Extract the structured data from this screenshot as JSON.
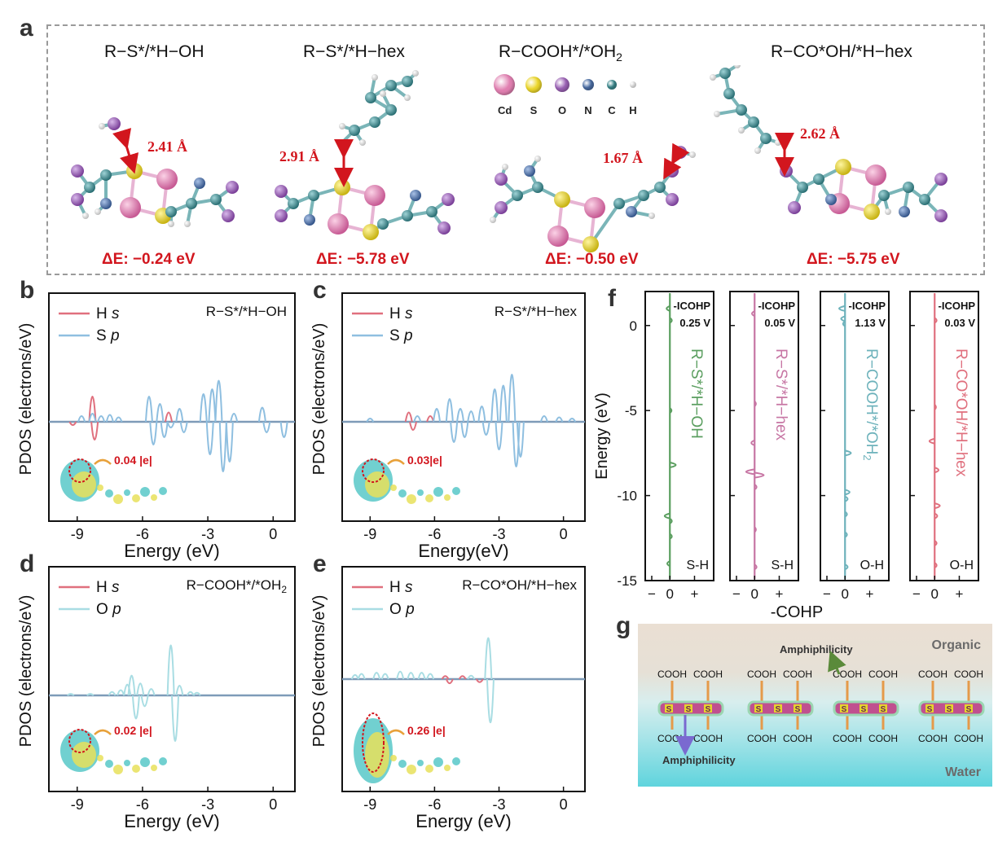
{
  "panel_labels": [
    "a",
    "b",
    "c",
    "d",
    "e",
    "f",
    "g"
  ],
  "panel_a": {
    "structures": [
      {
        "title": "R−S*/*H−OH",
        "distance": "2.41 Å",
        "energy": "ΔE: −0.24 eV"
      },
      {
        "title": "R−S*/*H−hex",
        "distance": "2.91 Å",
        "energy": "ΔE: −5.78 eV"
      },
      {
        "title": "R−COOH*/*OH",
        "title_sub": "2",
        "distance": "1.67 Å",
        "energy": "ΔE: −0.50 eV"
      },
      {
        "title": "R−CO*OH/*H−hex",
        "distance": "2.62 Å",
        "energy": "ΔE: −5.75 eV"
      }
    ],
    "atom_legend": [
      {
        "label": "Cd",
        "color": "#e07fb0"
      },
      {
        "label": "S",
        "color": "#ecd72c"
      },
      {
        "label": "O",
        "color": "#9b62b5"
      },
      {
        "label": "N",
        "color": "#4c6fa6"
      },
      {
        "label": "C",
        "color": "#3c8a8f"
      },
      {
        "label": "H",
        "color": "#f2f2f2"
      }
    ]
  },
  "pdos": {
    "ylabel": "PDOS (electrons/eV)",
    "colors": {
      "Hs": "#e0707e",
      "Sp": "#8fbfe0",
      "Op": "#a9dde3",
      "overlap": "#7e9bb8"
    },
    "panels": [
      {
        "id": "b",
        "title": "R−S*/*H−OH",
        "xlabel": "Energy (eV)",
        "legend": [
          "H",
          "s",
          "S",
          "p"
        ],
        "charge": "0.04 |e|"
      },
      {
        "id": "c",
        "title": "R−S*/*H−hex",
        "xlabel": "Energy(eV)",
        "legend": [
          "H",
          "s",
          "S",
          "p"
        ],
        "charge": "0.03|e|"
      },
      {
        "id": "d",
        "title": "R−COOH*/*OH",
        "title_sub": "2",
        "xlabel": "Energy (eV)",
        "legend": [
          "H",
          "s",
          "O",
          "p"
        ],
        "charge": "0.02 |e|"
      },
      {
        "id": "e",
        "title": "R−CO*OH/*H−hex",
        "xlabel": "Energy (eV)",
        "legend": [
          "H",
          "s",
          "O",
          "p"
        ],
        "charge": "0.26 |e|"
      }
    ]
  },
  "chart_data": {
    "type": "line",
    "pdos_xticks": [
      "-9",
      "-6",
      "-3",
      "0"
    ],
    "pdos_xlim": [
      -10.3,
      1
    ],
    "cohp": {
      "ylabel": "Energy (eV)",
      "xlabel": "-COHP",
      "yticks": [
        "0",
        "-5",
        "-10",
        "-15"
      ],
      "ylim": [
        -15,
        2
      ],
      "xticks": [
        "−",
        "0",
        "+"
      ],
      "panels": [
        {
          "icohp_label": "-ICOHP",
          "icohp_value": "0.25 V",
          "name": "R−S*/*H−OH",
          "bond": "S-H",
          "color": "#5a9e5f",
          "peaks": [
            {
              "e": 1.0,
              "v": -0.5
            },
            {
              "e": 0.3,
              "v": 0.3
            },
            {
              "e": -5.0,
              "v": 0.25
            },
            {
              "e": -8.2,
              "v": 0.9
            },
            {
              "e": -11.2,
              "v": -0.8
            },
            {
              "e": -11.5,
              "v": 0.3
            },
            {
              "e": -12.4,
              "v": 0.3
            },
            {
              "e": -14.0,
              "v": -0.4
            }
          ]
        },
        {
          "icohp_label": "-ICOHP",
          "icohp_value": "0.05 V",
          "name": "R−S*/*H−hex",
          "bond": "S-H",
          "color": "#c776a4",
          "peaks": [
            {
              "e": 0.7,
              "v": -0.4
            },
            {
              "e": -4.6,
              "v": 0.2
            },
            {
              "e": -6.9,
              "v": -0.5
            },
            {
              "e": -8.6,
              "v": -1.3
            },
            {
              "e": -8.8,
              "v": 1.4
            },
            {
              "e": -9.5,
              "v": 0.3
            },
            {
              "e": -12.0,
              "v": 0.2
            },
            {
              "e": -14.2,
              "v": 0.3
            }
          ]
        },
        {
          "icohp_label": "-ICOHP",
          "icohp_value": "1.13 V",
          "name": "R−COOH*/*OH",
          "name_sub": "2",
          "bond": "O-H",
          "color": "#6db2bb",
          "peaks": [
            {
              "e": 1.0,
              "v": -0.9
            },
            {
              "e": 0.4,
              "v": -0.6
            },
            {
              "e": 0.1,
              "v": -0.3
            },
            {
              "e": -7.5,
              "v": 0.9
            },
            {
              "e": -9.8,
              "v": 0.7
            },
            {
              "e": -10.2,
              "v": 0.4
            },
            {
              "e": -11.1,
              "v": 0.3
            },
            {
              "e": -12.3,
              "v": 0.3
            },
            {
              "e": -14.2,
              "v": 0.4
            }
          ]
        },
        {
          "icohp_label": "-ICOHP",
          "icohp_value": "0.03 V",
          "name": "R−CO*OH/*H−hex",
          "bond": "O-H",
          "color": "#e0707e",
          "peaks": [
            {
              "e": 0.3,
              "v": 0.3
            },
            {
              "e": -4.8,
              "v": 0.2
            },
            {
              "e": -6.8,
              "v": -0.8
            },
            {
              "e": -8.5,
              "v": 0.6
            },
            {
              "e": -10.6,
              "v": 0.8
            },
            {
              "e": -11.2,
              "v": 0.4
            },
            {
              "e": -12.8,
              "v": 0.3
            },
            {
              "e": -14.1,
              "v": 0.3
            }
          ]
        }
      ]
    }
  },
  "panel_g": {
    "organic_label": "Organic",
    "water_label": "Water",
    "amph_top": "Amphiphilicity",
    "amph_bottom": "Amphiphilicity",
    "group_label": "COOH",
    "s_label": "S"
  }
}
